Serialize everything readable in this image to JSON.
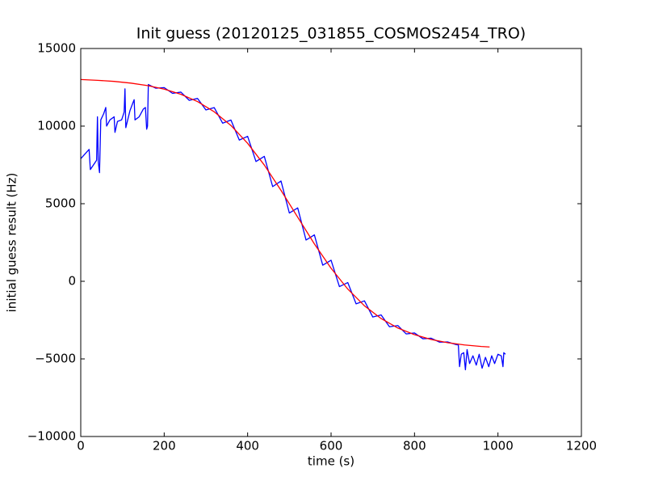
{
  "chart_data": {
    "type": "line",
    "title": "Init guess (20120125_031855_COSMOS2454_TRO)",
    "x_label": "time (s)",
    "y_label": "initial guess result (Hz)",
    "xlim": [
      0,
      1200
    ],
    "xticks": [
      0,
      200,
      400,
      600,
      800,
      1000,
      1200
    ],
    "ylim": [
      -10000,
      15000
    ],
    "yticks": [
      {
        "value": -10000,
        "label": "−10000"
      },
      {
        "value": -5000,
        "label": "−5000"
      },
      0,
      5000,
      10000,
      15000
    ],
    "grid": false,
    "series": [
      {
        "color": "#0000ff",
        "x": [
          0,
          20,
          23,
          38,
          40,
          42,
          45,
          48,
          55,
          60,
          62,
          70,
          80,
          82,
          88,
          98,
          104,
          106,
          108,
          118,
          125,
          128,
          130,
          140,
          150,
          155,
          158,
          160,
          162,
          180,
          200,
          220,
          240,
          260,
          280,
          300,
          320,
          340,
          360,
          380,
          400,
          420,
          440,
          460,
          480,
          500,
          520,
          540,
          560,
          580,
          600,
          620,
          640,
          660,
          680,
          700,
          720,
          740,
          760,
          780,
          800,
          820,
          840,
          860,
          880,
          900,
          905,
          908,
          912,
          918,
          922,
          926,
          932,
          940,
          948,
          955,
          962,
          970,
          978,
          985,
          992,
          1000,
          1008,
          1012,
          1014,
          1018
        ],
        "values": [
          7900,
          8500,
          7200,
          7800,
          10600,
          7700,
          7000,
          10400,
          10800,
          11200,
          10000,
          10400,
          10600,
          9600,
          10300,
          10400,
          10900,
          12400,
          9900,
          11000,
          11500,
          11700,
          10400,
          10600,
          11100,
          11200,
          9800,
          10000,
          12680,
          12440,
          12480,
          12110,
          12190,
          11660,
          11780,
          11040,
          11190,
          10190,
          10390,
          9100,
          9340,
          7720,
          8050,
          6100,
          6460,
          4400,
          4730,
          2660,
          2990,
          1040,
          1360,
          -340,
          -80,
          -1450,
          -1260,
          -2300,
          -2170,
          -2930,
          -2850,
          -3390,
          -3330,
          -3700,
          -3670,
          -3920,
          -3910,
          -4080,
          -4100,
          -5500,
          -4700,
          -4600,
          -5700,
          -4400,
          -5300,
          -4800,
          -5400,
          -4700,
          -5600,
          -4900,
          -5500,
          -4800,
          -5300,
          -4700,
          -4800,
          -5500,
          -4600,
          -4700
        ]
      },
      {
        "color": "#ff0000",
        "x": [
          0,
          40,
          80,
          120,
          160,
          200,
          240,
          280,
          320,
          360,
          400,
          440,
          480,
          520,
          560,
          600,
          640,
          680,
          720,
          760,
          800,
          840,
          880,
          920,
          960,
          980
        ],
        "values": [
          13000,
          12950,
          12880,
          12770,
          12610,
          12380,
          12050,
          11580,
          10920,
          10040,
          8890,
          7490,
          5860,
          4130,
          2410,
          840,
          -500,
          -1580,
          -2400,
          -3010,
          -3440,
          -3750,
          -3960,
          -4100,
          -4200,
          -4230
        ]
      }
    ]
  }
}
